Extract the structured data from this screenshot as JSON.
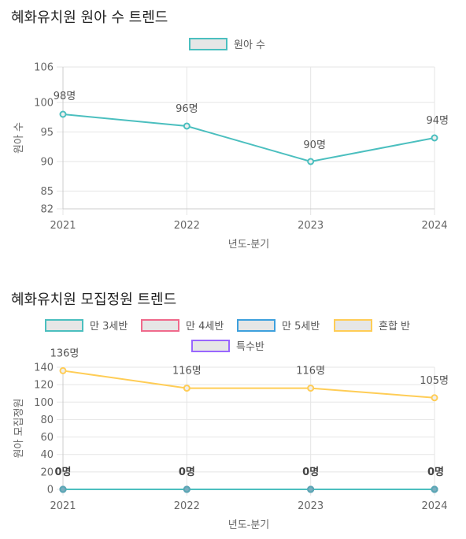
{
  "chart_data": [
    {
      "type": "line",
      "title": "혜화유치원 원아 수 트렌드",
      "xlabel": "년도-분기",
      "ylabel": "원아 수",
      "categories": [
        "2021",
        "2022",
        "2023",
        "2024"
      ],
      "yticks": [
        82,
        85,
        90,
        95,
        100,
        106
      ],
      "ylim": [
        82,
        106
      ],
      "grid": true,
      "legend_position": "top",
      "series": [
        {
          "name": "원아 수",
          "color": "#4bbfbf",
          "values": [
            98,
            96,
            90,
            94
          ],
          "labels": [
            "98명",
            "96명",
            "90명",
            "94명"
          ]
        }
      ]
    },
    {
      "type": "line",
      "title": "혜화유치원 모집정원 트렌드",
      "xlabel": "년도-분기",
      "ylabel": "원아 모집정원",
      "categories": [
        "2021",
        "2022",
        "2023",
        "2024"
      ],
      "yticks": [
        0,
        20,
        40,
        60,
        80,
        100,
        120,
        140
      ],
      "ylim": [
        0,
        140
      ],
      "grid": true,
      "legend_position": "top",
      "series": [
        {
          "name": "만 3세반",
          "color": "#4bbfbf",
          "values": [
            0,
            0,
            0,
            0
          ]
        },
        {
          "name": "만 4세반",
          "color": "#f06a8c",
          "values": [
            0,
            0,
            0,
            0
          ]
        },
        {
          "name": "만 5세반",
          "color": "#3ea0dd",
          "values": [
            0,
            0,
            0,
            0
          ]
        },
        {
          "name": "혼합 반",
          "color": "#ffcd56",
          "values": [
            136,
            116,
            116,
            105
          ],
          "labels": [
            "136명",
            "116명",
            "116명",
            "105명"
          ]
        },
        {
          "name": "특수반",
          "color": "#9966ff",
          "values": [
            0,
            0,
            0,
            0
          ]
        }
      ],
      "zero_labels": [
        "0명",
        "0명",
        "0명",
        "0명"
      ]
    }
  ]
}
